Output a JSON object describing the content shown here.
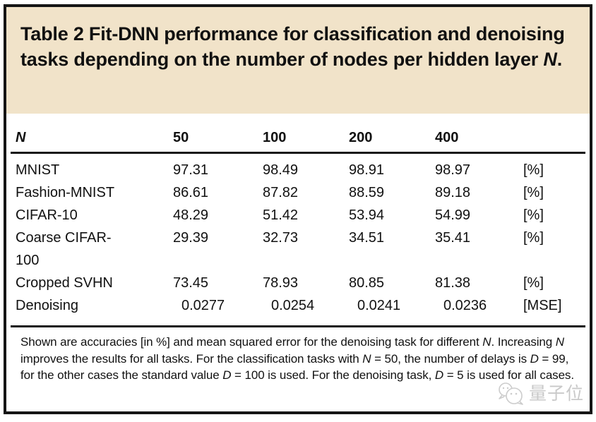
{
  "title": {
    "segments": [
      {
        "text": "Table 2 Fit-DNN performance for classification and denoising tasks depending on the number of nodes per hidden layer "
      },
      {
        "text": "N",
        "italic": true
      },
      {
        "text": "."
      }
    ]
  },
  "table": {
    "header": {
      "n_label": "N",
      "columns": [
        "50",
        "100",
        "200",
        "400"
      ],
      "units_label": ""
    },
    "rows": [
      {
        "task": "MNIST",
        "values": [
          "97.31",
          "98.49",
          "98.91",
          "98.97"
        ],
        "unit": "[%]",
        "decimal_shift": false
      },
      {
        "task": "Fashion-MNIST",
        "values": [
          "86.61",
          "87.82",
          "88.59",
          "89.18"
        ],
        "unit": "[%]",
        "decimal_shift": false
      },
      {
        "task": "CIFAR-10",
        "values": [
          "48.29",
          "51.42",
          "53.94",
          "54.99"
        ],
        "unit": "[%]",
        "decimal_shift": false
      },
      {
        "task": "Coarse CIFAR-100",
        "values": [
          "29.39",
          "32.73",
          "34.51",
          "35.41"
        ],
        "unit": "[%]",
        "decimal_shift": false
      },
      {
        "task": "Cropped SVHN",
        "values": [
          "73.45",
          "78.93",
          "80.85",
          "81.38"
        ],
        "unit": "[%]",
        "decimal_shift": false
      },
      {
        "task": "Denoising",
        "values": [
          "0.0277",
          "0.0254",
          "0.0241",
          "0.0236"
        ],
        "unit": "[MSE]",
        "decimal_shift": true
      }
    ]
  },
  "footnote": {
    "segments": [
      {
        "text": "Shown are accuracies [in %] and mean squared error for the denoising task for different "
      },
      {
        "text": "N",
        "italic": true
      },
      {
        "text": ". Increasing "
      },
      {
        "text": "N",
        "italic": true
      },
      {
        "text": " improves the results for all tasks. For the classification tasks with "
      },
      {
        "text": "N",
        "italic": true
      },
      {
        "text": " = 50, the number of delays is "
      },
      {
        "text": "D",
        "italic": true
      },
      {
        "text": " = 99, for the other cases the standard value "
      },
      {
        "text": "D",
        "italic": true
      },
      {
        "text": " = 100 is used. For the denoising task, "
      },
      {
        "text": "D",
        "italic": true
      },
      {
        "text": " = 5 is used for all cases."
      }
    ]
  },
  "watermark": {
    "text": "量子位"
  },
  "colors": {
    "title_background": "#f1e3c9",
    "border": "#151515",
    "text": "#111111",
    "watermark": "#c9c9c9"
  }
}
